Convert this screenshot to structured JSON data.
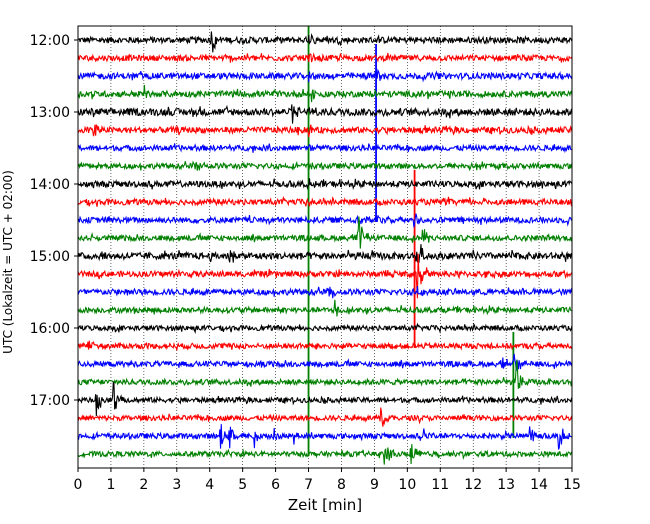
{
  "chart_data": {
    "type": "line",
    "title": "",
    "xlabel": "Zeit  [min]",
    "ylabel": "UTC (Lokalzeit = UTC + 02:00)",
    "xlim": [
      0,
      15
    ],
    "x_ticks": [
      0,
      1,
      2,
      3,
      4,
      5,
      6,
      7,
      8,
      9,
      10,
      11,
      12,
      13,
      14,
      15
    ],
    "x_tick_labels": [
      "0",
      "1",
      "2",
      "3",
      "4",
      "5",
      "6",
      "7",
      "8",
      "9",
      "10",
      "11",
      "12",
      "13",
      "14",
      "15"
    ],
    "y_tick_labels": [
      "12:00",
      "13:00",
      "14:00",
      "15:00",
      "16:00",
      "17:00"
    ],
    "y_tick_rows": [
      0,
      4,
      8,
      12,
      16,
      20
    ],
    "row_interval_minutes": 15,
    "grid": {
      "x": true,
      "style": "dotted",
      "y": false
    },
    "trace_colors": [
      "#000000",
      "#ff0000",
      "#0000ff",
      "#008000"
    ],
    "series": [
      {
        "start": "12:00",
        "color": "#000000",
        "amp": 0.17,
        "events": [
          {
            "t": 4.05,
            "a": 0.9
          },
          {
            "t": 7.0,
            "a": 0.5
          }
        ]
      },
      {
        "start": "12:15",
        "color": "#ff0000",
        "amp": 0.16,
        "events": [
          {
            "t": 7.0,
            "a": 0.45
          }
        ]
      },
      {
        "start": "12:30",
        "color": "#0000ff",
        "amp": 0.17,
        "events": [
          {
            "t": 7.0,
            "a": 0.4
          },
          {
            "t": 9.05,
            "a": 0.5
          }
        ]
      },
      {
        "start": "12:45",
        "color": "#008000",
        "amp": 0.17,
        "events": [
          {
            "t": 2.0,
            "a": 0.5
          },
          {
            "t": 7.1,
            "a": 0.7
          }
        ]
      },
      {
        "start": "13:00",
        "color": "#000000",
        "amp": 0.2,
        "events": [
          {
            "t": 6.5,
            "a": 0.6
          },
          {
            "t": 7.0,
            "a": 0.4
          }
        ]
      },
      {
        "start": "13:15",
        "color": "#ff0000",
        "amp": 0.17,
        "events": [
          {
            "t": 0.45,
            "a": 0.8
          },
          {
            "t": 7.0,
            "a": 0.4
          }
        ]
      },
      {
        "start": "13:30",
        "color": "#0000ff",
        "amp": 0.15,
        "events": [
          {
            "t": 7.0,
            "a": 0.3
          }
        ]
      },
      {
        "start": "13:45",
        "color": "#008000",
        "amp": 0.15,
        "events": [
          {
            "t": 3.5,
            "a": 0.5
          },
          {
            "t": 7.0,
            "a": 0.3
          }
        ]
      },
      {
        "start": "14:00",
        "color": "#000000",
        "amp": 0.17,
        "events": [
          {
            "t": 7.0,
            "a": 0.4
          }
        ]
      },
      {
        "start": "14:15",
        "color": "#ff0000",
        "amp": 0.16,
        "events": [
          {
            "t": 7.0,
            "a": 0.3
          }
        ]
      },
      {
        "start": "14:30",
        "color": "#0000ff",
        "amp": 0.16,
        "events": [
          {
            "t": 8.5,
            "a": 0.5
          },
          {
            "t": 9.0,
            "a": 0.5
          },
          {
            "t": 10.2,
            "a": 0.5
          }
        ]
      },
      {
        "start": "14:45",
        "color": "#008000",
        "amp": 0.15,
        "events": [
          {
            "t": 8.5,
            "a": 1.6
          },
          {
            "t": 10.45,
            "a": 0.8
          }
        ]
      },
      {
        "start": "15:00",
        "color": "#000000",
        "amp": 0.19,
        "events": [
          {
            "t": 4.6,
            "a": 0.5
          },
          {
            "t": 8.5,
            "a": 0.5
          },
          {
            "t": 10.3,
            "a": 1.5
          }
        ]
      },
      {
        "start": "15:15",
        "color": "#ff0000",
        "amp": 0.16,
        "events": [
          {
            "t": 10.3,
            "a": 1.8
          }
        ]
      },
      {
        "start": "15:30",
        "color": "#0000ff",
        "amp": 0.16,
        "events": [
          {
            "t": 1.5,
            "a": 0.45
          },
          {
            "t": 7.6,
            "a": 0.7
          },
          {
            "t": 10.2,
            "a": 0.5
          }
        ]
      },
      {
        "start": "15:45",
        "color": "#008000",
        "amp": 0.15,
        "events": [
          {
            "t": 7.8,
            "a": 0.9
          }
        ]
      },
      {
        "start": "16:00",
        "color": "#000000",
        "amp": 0.14,
        "events": []
      },
      {
        "start": "16:15",
        "color": "#ff0000",
        "amp": 0.15,
        "events": [
          {
            "t": 0.3,
            "a": 0.4
          }
        ]
      },
      {
        "start": "16:30",
        "color": "#0000ff",
        "amp": 0.15,
        "events": [
          {
            "t": 5.4,
            "a": 0.5
          },
          {
            "t": 12.9,
            "a": 0.5
          },
          {
            "t": 13.25,
            "a": 1.0
          }
        ]
      },
      {
        "start": "16:45",
        "color": "#008000",
        "amp": 0.15,
        "events": [
          {
            "t": 13.3,
            "a": 1.6
          },
          {
            "t": 15.0,
            "a": 0.5
          }
        ]
      },
      {
        "start": "17:00",
        "color": "#000000",
        "amp": 0.14,
        "events": [
          {
            "t": 0.55,
            "a": 1.0
          },
          {
            "t": 1.05,
            "a": 1.5
          }
        ]
      },
      {
        "start": "17:15",
        "color": "#ff0000",
        "amp": 0.14,
        "events": [
          {
            "t": 9.2,
            "a": 1.0
          }
        ]
      },
      {
        "start": "17:30",
        "color": "#0000ff",
        "amp": 0.15,
        "events": [
          {
            "t": 4.3,
            "a": 1.2
          },
          {
            "t": 4.6,
            "a": 0.9
          },
          {
            "t": 5.35,
            "a": 0.7
          },
          {
            "t": 5.95,
            "a": 0.7
          },
          {
            "t": 6.55,
            "a": 0.5
          },
          {
            "t": 10.5,
            "a": 0.5
          },
          {
            "t": 13.7,
            "a": 0.7
          },
          {
            "t": 14.6,
            "a": 1.3
          }
        ]
      },
      {
        "start": "17:45",
        "color": "#008000",
        "amp": 0.14,
        "events": [
          {
            "t": 9.3,
            "a": 1.0
          },
          {
            "t": 10.1,
            "a": 1.0
          }
        ]
      }
    ],
    "vertical_events": [
      {
        "x": 7.0,
        "from_row": 0,
        "to_row": 23,
        "color": "#008000"
      },
      {
        "x": 9.05,
        "from_row": 1,
        "to_row": 10,
        "color": "#0000ff"
      },
      {
        "x": 10.22,
        "from_row": 8,
        "to_row": 17,
        "color": "#ff0000"
      },
      {
        "x": 13.22,
        "from_row": 17,
        "to_row": 22,
        "color": "#008000"
      }
    ]
  }
}
